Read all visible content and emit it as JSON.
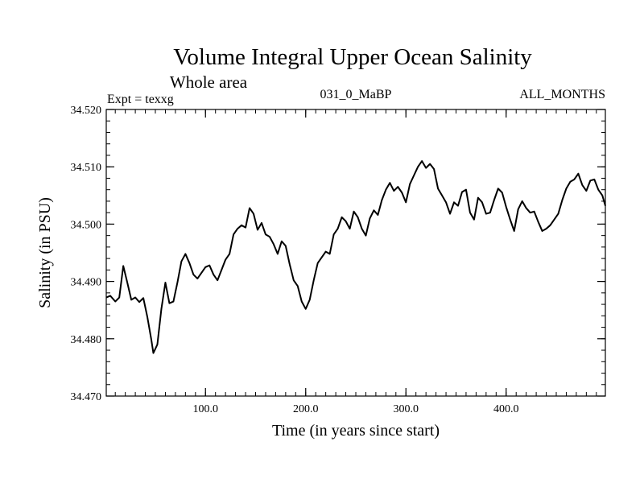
{
  "chart_data": {
    "type": "line",
    "title": "Volume Integral Upper Ocean Salinity",
    "subtitle": "Whole area",
    "header_left": "Expt = texxg",
    "header_center": "031_0_MaBP",
    "header_right": "ALL_MONTHS",
    "xlabel": "Time (in years since start)",
    "ylabel": "Salinity (in PSU)",
    "xlim": [
      1,
      499
    ],
    "ylim": [
      34.47,
      34.52
    ],
    "x_ticks": [
      {
        "value": 100,
        "label": "100.0"
      },
      {
        "value": 200,
        "label": "200.0"
      },
      {
        "value": 300,
        "label": "300.0"
      },
      {
        "value": 400,
        "label": "400.0"
      }
    ],
    "x_minor_step": 10,
    "y_ticks": [
      {
        "value": 34.47,
        "label": "34.470"
      },
      {
        "value": 34.48,
        "label": "34.480"
      },
      {
        "value": 34.49,
        "label": "34.490"
      },
      {
        "value": 34.5,
        "label": "34.500"
      },
      {
        "value": 34.51,
        "label": "34.510"
      },
      {
        "value": 34.52,
        "label": "34.520"
      }
    ],
    "y_minor_step": 0.002,
    "grid": false,
    "series": [
      {
        "name": "Salinity",
        "color": "#000000",
        "x": [
          1,
          5,
          10,
          14,
          18,
          22,
          26,
          30,
          34,
          38,
          42,
          46,
          48,
          52,
          56,
          60,
          64,
          68,
          72,
          76,
          80,
          84,
          88,
          92,
          96,
          100,
          104,
          108,
          112,
          116,
          120,
          124,
          128,
          132,
          136,
          140,
          144,
          148,
          152,
          156,
          160,
          164,
          168,
          172,
          176,
          180,
          184,
          188,
          192,
          196,
          200,
          204,
          208,
          212,
          216,
          220,
          224,
          228,
          232,
          236,
          240,
          244,
          248,
          252,
          256,
          260,
          264,
          268,
          272,
          276,
          280,
          284,
          288,
          292,
          296,
          300,
          304,
          308,
          312,
          316,
          320,
          324,
          328,
          332,
          336,
          340,
          344,
          348,
          352,
          356,
          360,
          364,
          368,
          372,
          376,
          380,
          384,
          388,
          392,
          396,
          400,
          404,
          408,
          412,
          416,
          420,
          424,
          428,
          432,
          436,
          440,
          444,
          448,
          452,
          456,
          460,
          464,
          468,
          472,
          476,
          480,
          484,
          488,
          492,
          496,
          499
        ],
        "values": [
          34.4872,
          34.4875,
          34.4865,
          34.4872,
          34.4927,
          34.4898,
          34.4868,
          34.4872,
          34.4864,
          34.4871,
          34.4838,
          34.4798,
          34.4775,
          34.479,
          34.4852,
          34.4898,
          34.4862,
          34.4865,
          34.4898,
          34.4935,
          34.4948,
          34.4932,
          34.4912,
          34.4905,
          34.4915,
          34.4925,
          34.4928,
          34.4912,
          34.4902,
          34.492,
          34.4938,
          34.4948,
          34.4982,
          34.4992,
          34.4998,
          34.4994,
          34.5028,
          34.5018,
          34.499,
          34.5002,
          34.4982,
          34.4978,
          34.4965,
          34.4948,
          34.497,
          34.4962,
          34.493,
          34.4902,
          34.4892,
          34.4865,
          34.4852,
          34.4868,
          34.4902,
          34.4932,
          34.4942,
          34.4952,
          34.4948,
          34.4982,
          34.4992,
          34.5012,
          34.5005,
          34.4992,
          34.5022,
          34.5012,
          34.4992,
          34.498,
          34.501,
          34.5024,
          34.5016,
          34.5042,
          34.506,
          34.5072,
          34.5058,
          34.5065,
          34.5055,
          34.5038,
          34.507,
          34.5085,
          34.51,
          34.511,
          34.5098,
          34.5105,
          34.5096,
          34.5062,
          34.505,
          34.5038,
          34.5018,
          34.5038,
          34.5032,
          34.5056,
          34.506,
          34.502,
          34.5008,
          34.5046,
          34.5038,
          34.5018,
          34.502,
          34.5042,
          34.5062,
          34.5055,
          34.503,
          34.5008,
          34.4988,
          34.5026,
          34.504,
          34.5028,
          34.502,
          34.5022,
          34.5004,
          34.4988,
          34.4992,
          34.4998,
          34.5008,
          34.5018,
          34.5042,
          34.5062,
          34.5074,
          34.5078,
          34.5088,
          34.5068,
          34.5058,
          34.5076,
          34.5078,
          34.506,
          34.505,
          34.5032
        ]
      }
    ]
  }
}
